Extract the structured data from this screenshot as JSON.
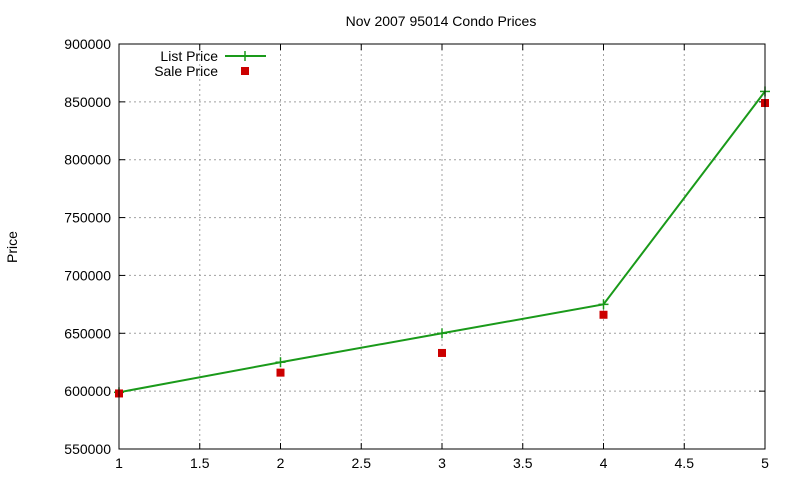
{
  "chart_data": {
    "type": "line",
    "title": "Nov 2007 95014 Condo Prices",
    "xlabel": "",
    "ylabel": "Price",
    "xlim": [
      1,
      5
    ],
    "ylim": [
      550000,
      900000
    ],
    "x_ticks": [
      "1",
      "1.5",
      "2",
      "2.5",
      "3",
      "3.5",
      "4",
      "4.5",
      "5"
    ],
    "y_ticks": [
      "550000",
      "600000",
      "650000",
      "700000",
      "750000",
      "800000",
      "850000",
      "900000"
    ],
    "grid": true,
    "legend_position": "top-left",
    "series": [
      {
        "name": "List Price",
        "style": "lines+points",
        "marker": "plus",
        "color": "#1a9a1a",
        "x": [
          1,
          2,
          3,
          4,
          5
        ],
        "y": [
          599000,
          625000,
          650000,
          675000,
          859000
        ]
      },
      {
        "name": "Sale Price",
        "style": "points",
        "marker": "square",
        "color": "#cc0000",
        "x": [
          1,
          2,
          3,
          4,
          5
        ],
        "y": [
          598000,
          616000,
          633000,
          666000,
          849000
        ]
      }
    ]
  }
}
